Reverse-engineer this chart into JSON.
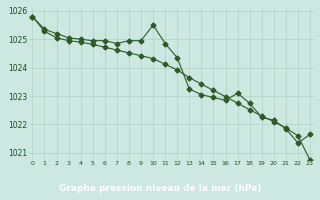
{
  "line1_x": [
    0,
    1,
    2,
    3,
    4,
    5,
    6,
    7,
    8,
    9,
    10,
    11,
    12,
    13,
    14,
    15,
    16,
    17,
    18,
    19,
    20,
    21,
    22,
    23
  ],
  "line1_y": [
    1025.8,
    1025.35,
    1025.2,
    1025.05,
    1025.0,
    1024.95,
    1024.95,
    1024.85,
    1024.95,
    1024.95,
    1025.5,
    1024.85,
    1024.35,
    1023.25,
    1023.05,
    1022.95,
    1022.85,
    1023.1,
    1022.75,
    1022.25,
    1022.15,
    1021.85,
    1021.35,
    1021.65
  ],
  "line2_x": [
    0,
    1,
    2,
    3,
    4,
    5,
    6,
    7,
    8,
    9,
    10,
    11,
    12,
    13,
    14,
    15,
    16,
    17,
    18,
    19,
    20,
    21,
    22,
    23
  ],
  "line2_y": [
    1025.8,
    1025.28,
    1025.05,
    1024.95,
    1024.9,
    1024.82,
    1024.72,
    1024.62,
    1024.52,
    1024.42,
    1024.32,
    1024.12,
    1023.92,
    1023.65,
    1023.42,
    1023.2,
    1022.98,
    1022.75,
    1022.52,
    1022.3,
    1022.1,
    1021.88,
    1021.6,
    1020.75
  ],
  "line_color": "#2d5a27",
  "bg_color": "#cce8e0",
  "grid_major_color": "#aaccbb",
  "grid_minor_color": "#bbddcc",
  "ylim_min": 1020.75,
  "ylim_max": 1026.1,
  "yticks": [
    1021,
    1022,
    1023,
    1024,
    1025,
    1026
  ],
  "xtick_labels": [
    "0",
    "1",
    "2",
    "3",
    "4",
    "5",
    "6",
    "7",
    "8",
    "9",
    "10",
    "11",
    "12",
    "13",
    "14",
    "15",
    "16",
    "17",
    "18",
    "19",
    "20",
    "21",
    "22",
    "23"
  ],
  "xlabel": "Graphe pression niveau de la mer (hPa)",
  "xlabel_color": "#ffffff",
  "xlabel_bg": "#2d5a27",
  "tick_label_color": "#1a4a1a",
  "marker": "D",
  "markersize": 2.5,
  "linewidth": 0.8
}
